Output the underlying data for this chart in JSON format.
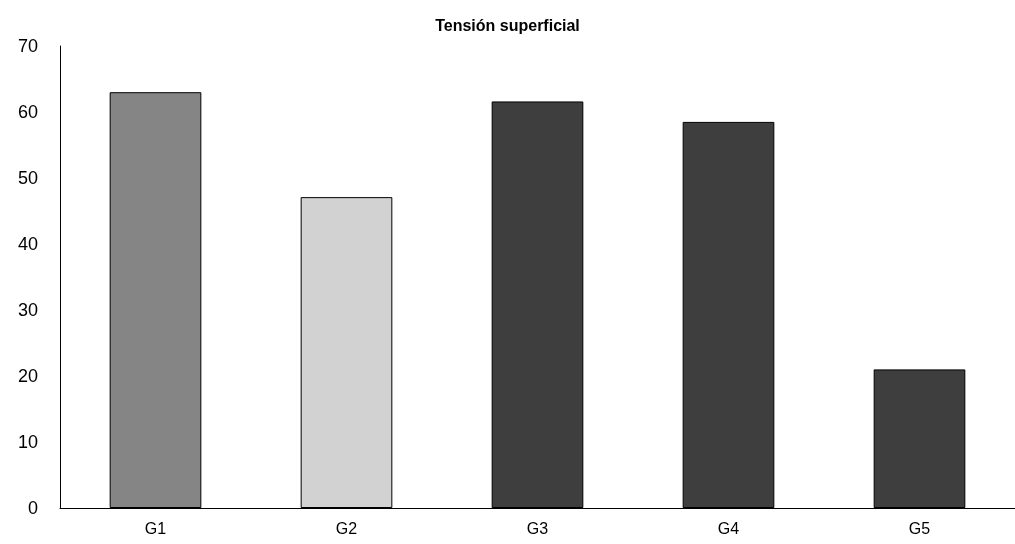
{
  "chart_data": {
    "type": "bar",
    "title": "Tensión superficial",
    "categories": [
      "G1",
      "G2",
      "G3",
      "G4",
      "G5"
    ],
    "values": [
      63,
      47.1,
      61.6,
      58.5,
      21
    ],
    "colors": [
      "#858585",
      "#d2d2d2",
      "#3e3e3e",
      "#3e3e3e",
      "#3e3e3e"
    ],
    "ylim": [
      0,
      70
    ],
    "yticks": [
      0,
      10,
      20,
      30,
      40,
      50,
      60,
      70
    ],
    "grid": false
  }
}
